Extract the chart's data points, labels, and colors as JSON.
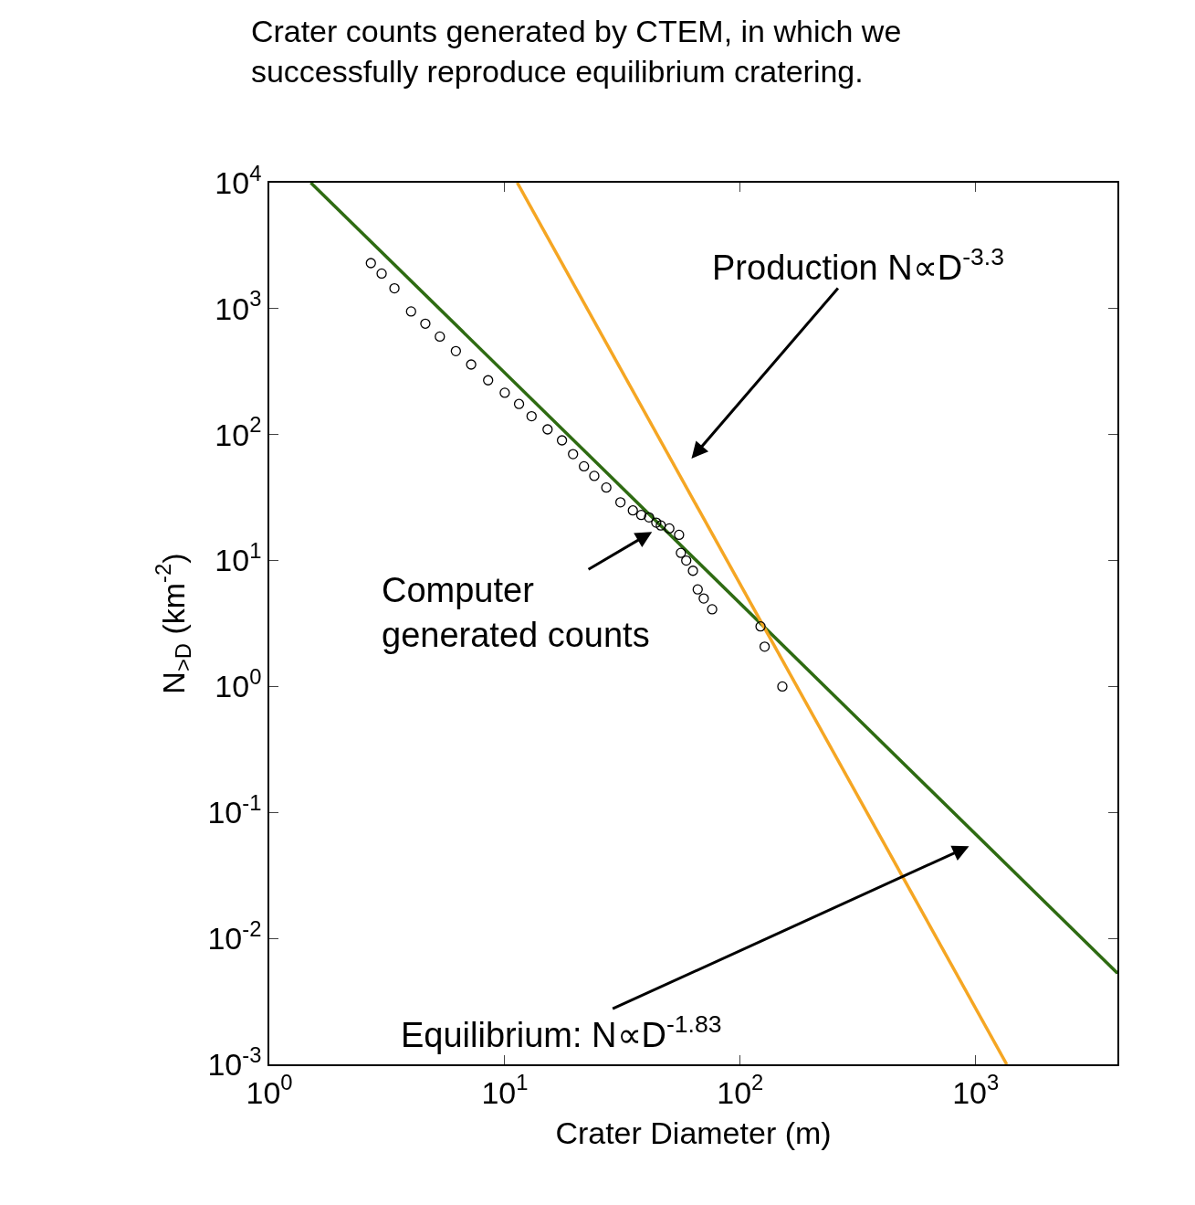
{
  "chart_data": {
    "type": "scatter",
    "title": "Crater counts generated by CTEM, in which we\nsuccessfully reproduce equilibrium cratering.",
    "xlabel": "Crater Diameter (m)",
    "ylabel": "N$_{>D}$ (km$^{-2}$)",
    "log": "xy",
    "xlim": [
      1,
      4000
    ],
    "ylim": [
      0.001,
      10000
    ],
    "xticks": [
      {
        "value": 1,
        "label": "10$^{0}$"
      },
      {
        "value": 10,
        "label": "10$^{1}$"
      },
      {
        "value": 100,
        "label": "10$^{2}$"
      },
      {
        "value": 1000,
        "label": "10$^{3}$"
      }
    ],
    "yticks": [
      {
        "value": 0.001,
        "label": "10$^{-3}$"
      },
      {
        "value": 0.01,
        "label": "10$^{-2}$"
      },
      {
        "value": 0.1,
        "label": "10$^{-1}$"
      },
      {
        "value": 1,
        "label": "10$^{0}$"
      },
      {
        "value": 10,
        "label": "10$^{1}$"
      },
      {
        "value": 100,
        "label": "10$^{2}$"
      },
      {
        "value": 1000,
        "label": "10$^{3}$"
      },
      {
        "value": 10000,
        "label": "10$^{4}$"
      }
    ],
    "series": [
      {
        "type": "line",
        "color": "#2e6b12",
        "marker": "none",
        "x": [
          1.5,
          4000
        ],
        "values": [
          10000,
          0.0053
        ]
      },
      {
        "type": "line",
        "color": "#f5a623",
        "marker": "none",
        "x": [
          11.3,
          1355
        ],
        "values": [
          10000,
          0.001
        ]
      },
      {
        "color": "#000000",
        "marker": "circle",
        "x": [
          2.7,
          3.0,
          3.4,
          4.0,
          4.6,
          5.3,
          6.2,
          7.2,
          8.5,
          10,
          11.5,
          13,
          15.2,
          17.5,
          19.5,
          21.7,
          24,
          27,
          31,
          35,
          38,
          41,
          44,
          46,
          50,
          55,
          56,
          59,
          63,
          66,
          70,
          76,
          122,
          127,
          151
        ],
        "values": [
          2300,
          1900,
          1450,
          950,
          760,
          600,
          460,
          360,
          270,
          215,
          175,
          140,
          110,
          90,
          70,
          56,
          47,
          38,
          29,
          25,
          23,
          22,
          20,
          19,
          18,
          16,
          11.5,
          10,
          8.3,
          5.9,
          5,
          4.1,
          3.0,
          2.07,
          1.0
        ]
      }
    ],
    "annotations": [
      "Production N∝D$^{-3.3}$",
      "Computer\ngenerated counts",
      "Equilibrium: N∝D$^{-1.83}$"
    ]
  }
}
